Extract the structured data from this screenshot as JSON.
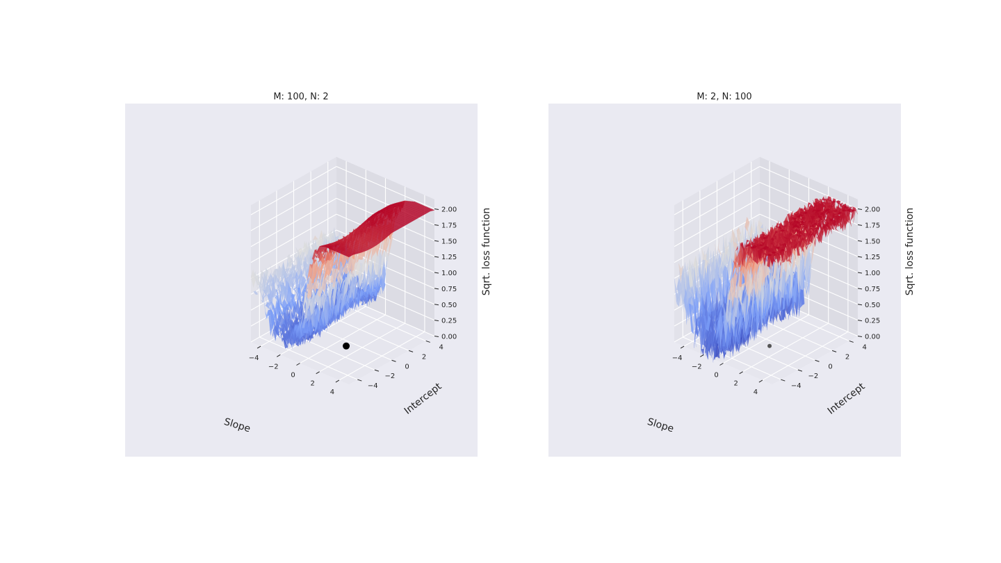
{
  "chart_data": [
    {
      "type": "surface3d",
      "title": "M: 100, N: 2",
      "xlabel": "Slope",
      "ylabel": "Intercept",
      "zlabel": "Sqrt. loss function",
      "xlim": [
        -5,
        5
      ],
      "ylim": [
        -5,
        5
      ],
      "zlim": [
        0,
        2
      ],
      "x_ticks": [
        "−4",
        "−2",
        "0",
        "2",
        "4"
      ],
      "y_ticks": [
        "−4",
        "−2",
        "0",
        "2",
        "4"
      ],
      "z_ticks": [
        "0.00",
        "0.25",
        "0.50",
        "0.75",
        "1.00",
        "1.25",
        "1.50",
        "1.75",
        "2.00"
      ],
      "colormap": "coolwarm",
      "noise": "low",
      "marker": {
        "x": 0.5,
        "y": 0,
        "z": 0,
        "color": "#000000"
      },
      "surface_profile": {
        "slope": [
          -5,
          -4,
          -3,
          -2,
          -1,
          0,
          1,
          2,
          3,
          4,
          5
        ],
        "sqrt_loss": [
          0.95,
          0.8,
          0.35,
          0.25,
          0.28,
          0.55,
          1.6,
          1.95,
          2.0,
          2.0,
          2.0
        ]
      },
      "grid": true
    },
    {
      "type": "surface3d",
      "title": "M: 2, N: 100",
      "xlabel": "Slope",
      "ylabel": "Intercept",
      "zlabel": "Sqrt. loss function",
      "xlim": [
        -5,
        5
      ],
      "ylim": [
        -5,
        5
      ],
      "zlim": [
        0,
        2
      ],
      "x_ticks": [
        "−4",
        "−2",
        "0",
        "2",
        "4"
      ],
      "y_ticks": [
        "−4",
        "−2",
        "0",
        "2",
        "4"
      ],
      "z_ticks": [
        "0.00",
        "0.25",
        "0.50",
        "0.75",
        "1.00",
        "1.25",
        "1.50",
        "1.75",
        "2.00"
      ],
      "colormap": "coolwarm",
      "noise": "high",
      "marker": {
        "x": 0.5,
        "y": 0,
        "z": 0,
        "color": "#555555"
      },
      "surface_profile": {
        "slope": [
          -5,
          -4,
          -3,
          -2,
          -1,
          0,
          1,
          2,
          3,
          4,
          5
        ],
        "sqrt_loss": [
          0.95,
          0.8,
          0.35,
          0.25,
          0.28,
          0.55,
          1.6,
          1.95,
          2.0,
          2.0,
          2.0
        ]
      },
      "grid": true
    }
  ]
}
